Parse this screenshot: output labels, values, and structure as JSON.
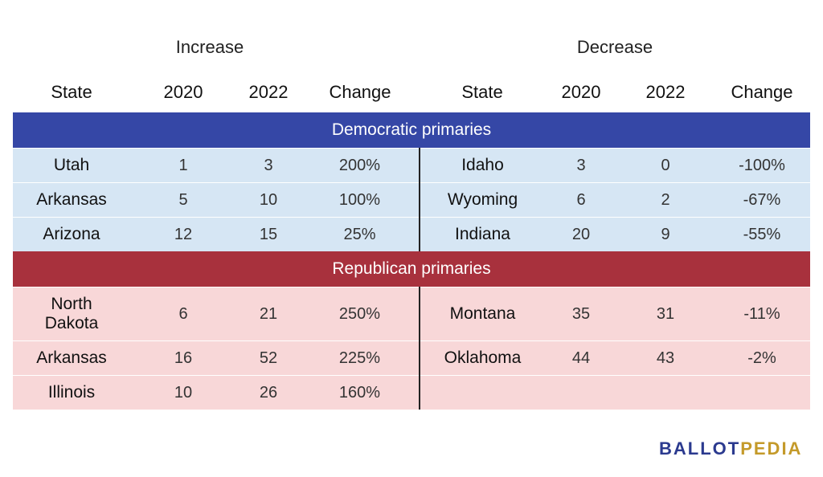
{
  "headers": {
    "increase": "Increase",
    "decrease": "Decrease",
    "columns": [
      "State",
      "2020",
      "2022",
      "Change",
      "State",
      "2020",
      "2022",
      "Change"
    ]
  },
  "sections": {
    "democratic": "Democratic primaries",
    "republican": "Republican primaries"
  },
  "chart_data": {
    "type": "table",
    "columns": [
      "State",
      "2020",
      "2022",
      "Change",
      "State",
      "2020",
      "2022",
      "Change"
    ],
    "democratic": {
      "rows": [
        [
          "Utah",
          "1",
          "3",
          "200%",
          "Idaho",
          "3",
          "0",
          "-100%"
        ],
        [
          "Arkansas",
          "5",
          "10",
          "100%",
          "Wyoming",
          "6",
          "2",
          "-67%"
        ],
        [
          "Arizona",
          "12",
          "15",
          "25%",
          "Indiana",
          "20",
          "9",
          "-55%"
        ]
      ]
    },
    "republican": {
      "rows": [
        [
          "North Dakota",
          "6",
          "21",
          "250%",
          "Montana",
          "35",
          "31",
          "-11%"
        ],
        [
          "Arkansas",
          "16",
          "52",
          "225%",
          "Oklahoma",
          "44",
          "43",
          "-2%"
        ],
        [
          "Illinois",
          "10",
          "26",
          "160%",
          "",
          "",
          "",
          ""
        ]
      ]
    }
  },
  "logo": {
    "part1": "BALLOT",
    "part2": "PEDIA"
  }
}
